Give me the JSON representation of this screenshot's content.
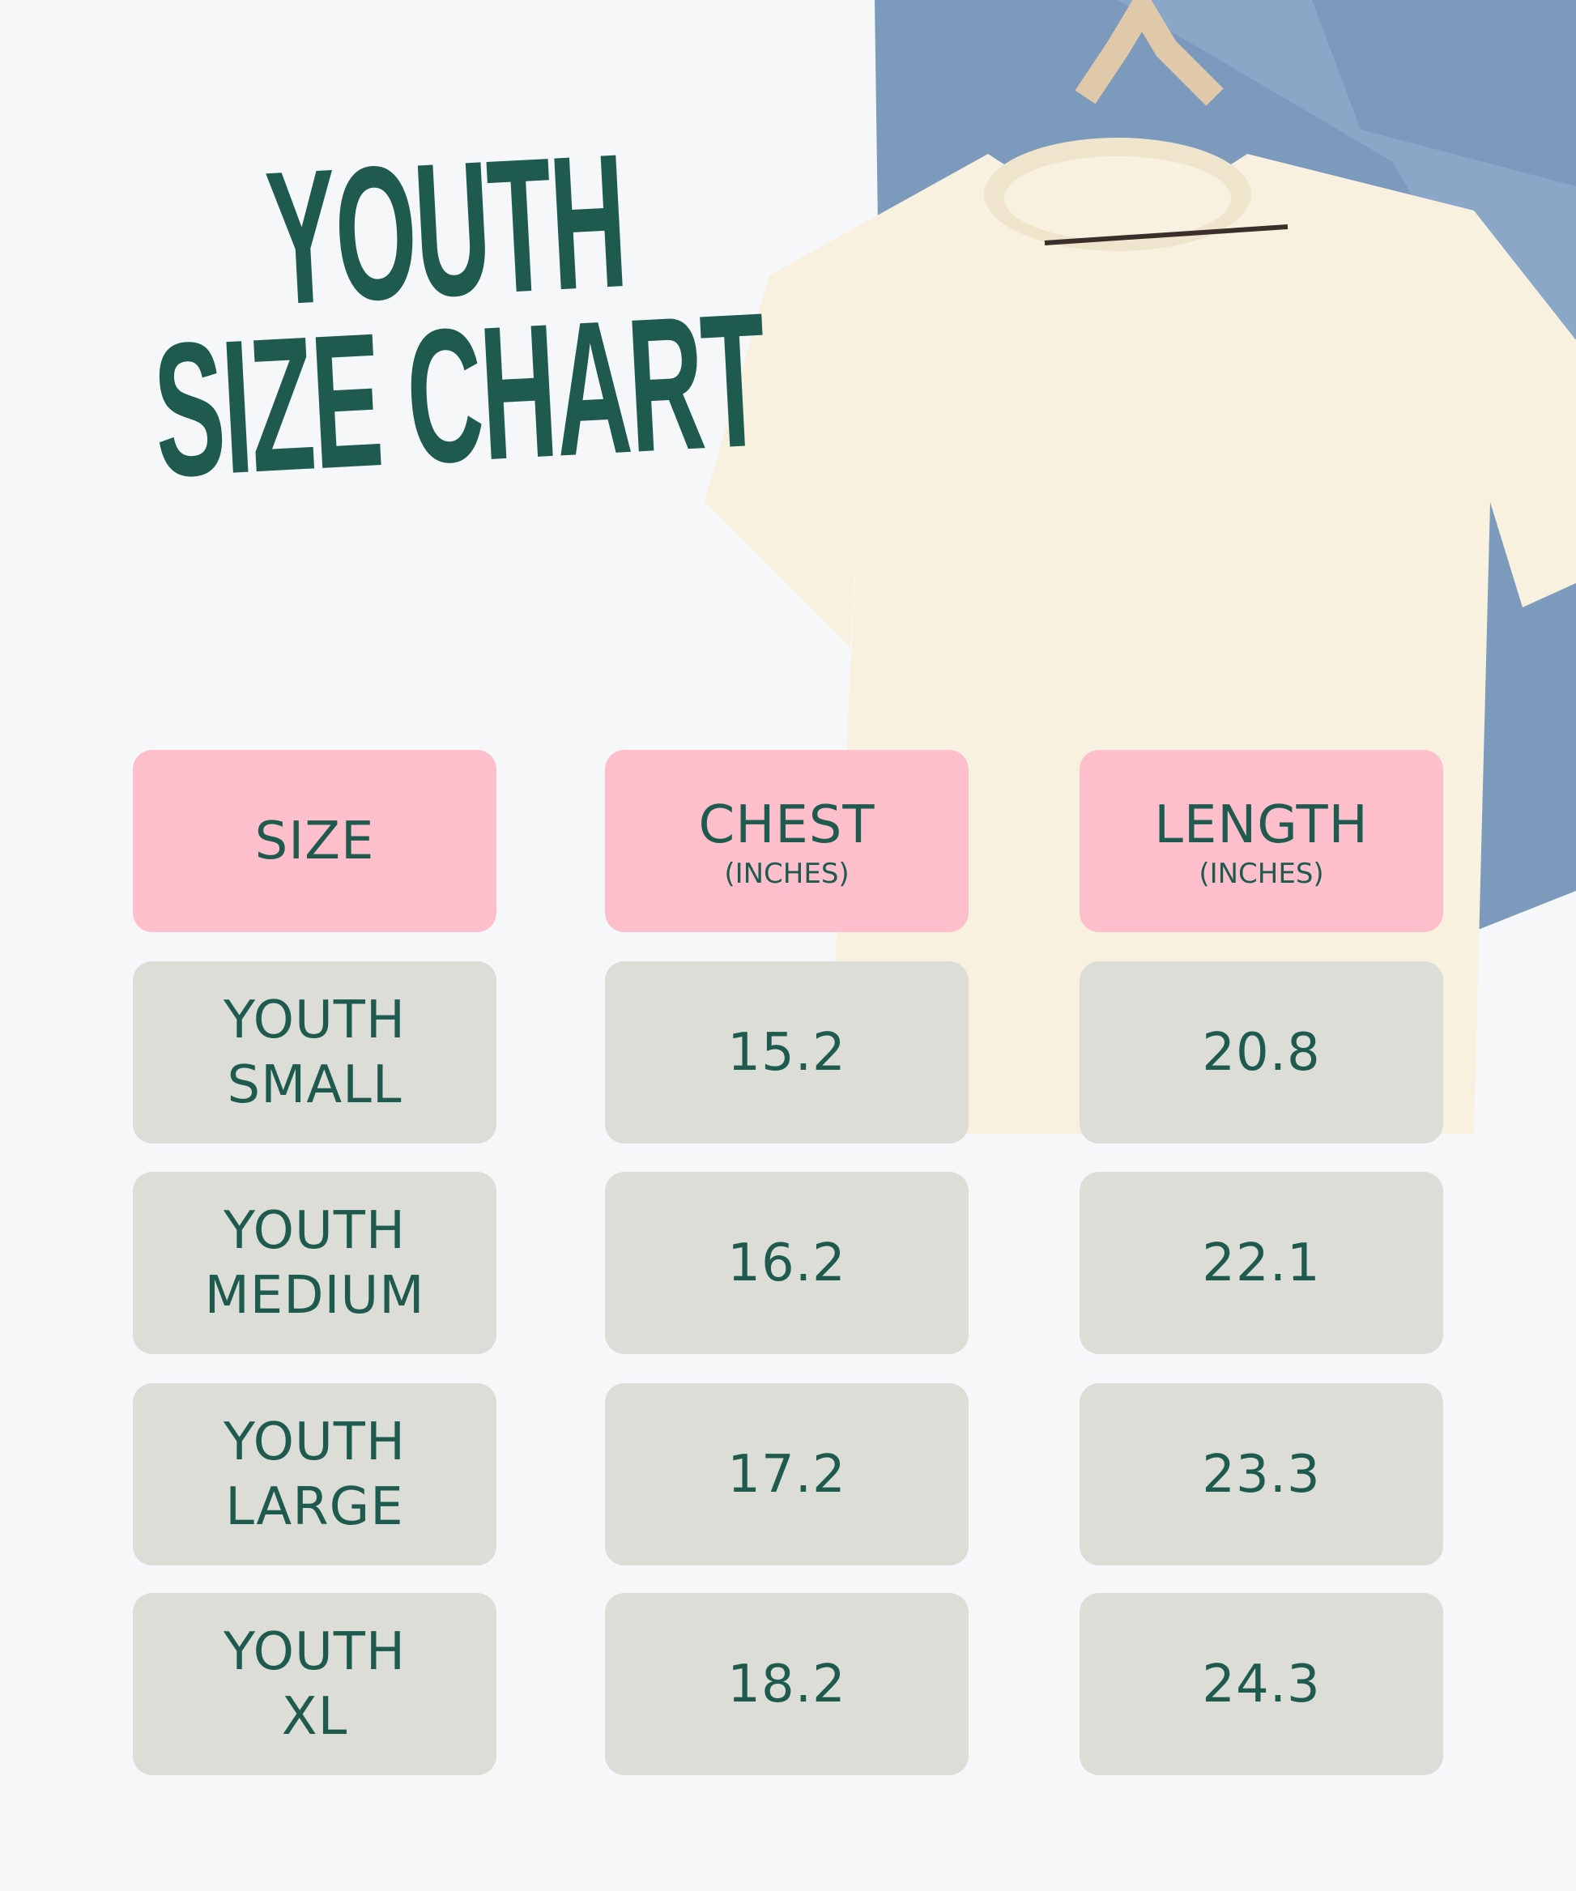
{
  "title": {
    "line1": "YOUTH",
    "line2": "SIZE CHART"
  },
  "colors": {
    "accent_text": "#1f5a4f",
    "header_bg": "#fdbfcb",
    "cell_bg": "#dcddd7",
    "background": "#f6f7f9"
  },
  "image": {
    "subject": "cream t-shirt on wooden hanger with denim jacket"
  },
  "table": {
    "headers": [
      {
        "label": "SIZE",
        "sub": ""
      },
      {
        "label": "CHEST",
        "sub": "(INCHES)"
      },
      {
        "label": "LENGTH",
        "sub": "(INCHES)"
      }
    ],
    "rows": [
      {
        "size1": "YOUTH",
        "size2": "SMALL",
        "chest": "15.2",
        "length": "20.8"
      },
      {
        "size1": "YOUTH",
        "size2": "MEDIUM",
        "chest": "16.2",
        "length": "22.1"
      },
      {
        "size1": "YOUTH",
        "size2": "LARGE",
        "chest": "17.2",
        "length": "23.3"
      },
      {
        "size1": "YOUTH",
        "size2": "XL",
        "chest": "18.2",
        "length": "24.3"
      }
    ]
  }
}
